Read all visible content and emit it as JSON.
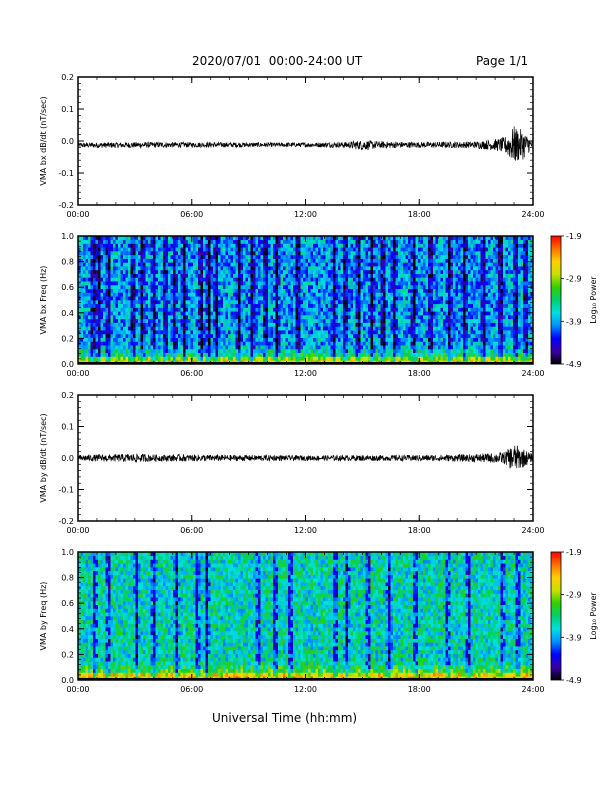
{
  "header": {
    "title": "2020/07/01  00:00-24:00 UT",
    "page": "Page 1/1"
  },
  "footer": {
    "xlabel": "Universal Time (hh:mm)"
  },
  "colorscale": {
    "stops": [
      "#000000",
      "#3a00a8",
      "#0000ff",
      "#0090ff",
      "#00e0e0",
      "#00d070",
      "#30d000",
      "#c8e000",
      "#ffd000",
      "#ff7000",
      "#ff0000"
    ]
  },
  "chart_data": [
    {
      "type": "line",
      "panel": "bx-wave",
      "ylabel": "VMA bx dB/dt (nT/sec)",
      "ylim": [
        -0.2,
        0.2
      ],
      "y_ticks": [
        -0.2,
        -0.1,
        0.0,
        0.1,
        0.2
      ],
      "y_tick_labels": [
        "-0.2",
        "-0.1",
        "0.0",
        "0.1",
        "0.2"
      ],
      "xlim": [
        "00:00",
        "24:00"
      ],
      "x_ticks": [
        "00:00",
        "06:00",
        "12:00",
        "18:00",
        "24:00"
      ],
      "series": [
        {
          "color": "#000000",
          "x_hours": [
            0,
            2,
            4,
            6,
            8,
            10,
            12,
            14,
            15,
            16,
            18,
            20,
            21,
            22,
            22.5,
            23,
            23.5,
            24
          ],
          "y_offset": [
            -0.013,
            -0.013,
            -0.012,
            -0.012,
            -0.012,
            -0.012,
            -0.012,
            -0.012,
            -0.013,
            -0.012,
            -0.012,
            -0.012,
            -0.012,
            -0.012,
            -0.013,
            -0.013,
            -0.012,
            -0.012
          ],
          "y_amplitude": [
            0.008,
            0.009,
            0.009,
            0.008,
            0.008,
            0.007,
            0.007,
            0.009,
            0.016,
            0.011,
            0.009,
            0.01,
            0.011,
            0.018,
            0.025,
            0.06,
            0.045,
            0.01
          ]
        }
      ]
    },
    {
      "type": "heatmap",
      "panel": "bx-spectrogram",
      "ylabel": "VMA bx Freq (Hz)",
      "ylim": [
        0.0,
        1.0
      ],
      "y_ticks": [
        0.0,
        0.2,
        0.4,
        0.6,
        0.8,
        1.0
      ],
      "y_tick_labels": [
        "0.0",
        "0.2",
        "0.4",
        "0.6",
        "0.8",
        "1.0"
      ],
      "xlim": [
        "00:00",
        "24:00"
      ],
      "x_ticks": [
        "00:00",
        "06:00",
        "12:00",
        "18:00",
        "24:00"
      ],
      "colorbar": {
        "label": "Log₁₀ Power",
        "range": [
          -4.9,
          -1.9
        ],
        "ticks": [
          -4.9,
          -3.9,
          -2.9,
          -1.9
        ],
        "tick_labels": [
          "-4.9",
          "-3.9",
          "-2.9",
          "-1.9"
        ]
      },
      "dark_stripe_hours": [
        0.8,
        1.1,
        1.6,
        2.9,
        3.4,
        4.0,
        4.6,
        5.1,
        5.6,
        6.5,
        6.9,
        7.3,
        8.5,
        9.2,
        9.9,
        10.5,
        11.6,
        13.5,
        14.1,
        14.8,
        15.5,
        16.1,
        16.7,
        17.7,
        18.6,
        19.6,
        20.4,
        21.4,
        22.3,
        23.1,
        23.6
      ],
      "low_freq_power": -2.9,
      "background_power": -3.9
    },
    {
      "type": "line",
      "panel": "by-wave",
      "ylabel": "VMA by dB/dt (nT/sec)",
      "ylim": [
        -0.2,
        0.2
      ],
      "y_ticks": [
        -0.2,
        -0.1,
        0.0,
        0.1,
        0.2
      ],
      "y_tick_labels": [
        "-0.2",
        "-0.1",
        "0.0",
        "0.1",
        "0.2"
      ],
      "xlim": [
        "00:00",
        "24:00"
      ],
      "x_ticks": [
        "00:00",
        "06:00",
        "12:00",
        "18:00",
        "24:00"
      ],
      "series": [
        {
          "color": "#000000",
          "x_hours": [
            0,
            2,
            3,
            4,
            6,
            8,
            10,
            12,
            14,
            16,
            18,
            20,
            21,
            22,
            22.5,
            23,
            23.5,
            24
          ],
          "y_offset": [
            0.0,
            0.0,
            0.0,
            0.0,
            0.0,
            0.0,
            0.0,
            0.0,
            0.0,
            0.0,
            0.0,
            0.0,
            0.0,
            0.0,
            0.0,
            0.0,
            0.0,
            0.0
          ],
          "y_amplitude": [
            0.01,
            0.012,
            0.014,
            0.011,
            0.011,
            0.01,
            0.009,
            0.008,
            0.009,
            0.009,
            0.01,
            0.011,
            0.013,
            0.016,
            0.02,
            0.045,
            0.03,
            0.01
          ]
        }
      ]
    },
    {
      "type": "heatmap",
      "panel": "by-spectrogram",
      "ylabel": "VMA by Freq (Hz)",
      "ylim": [
        0.0,
        1.0
      ],
      "y_ticks": [
        0.0,
        0.2,
        0.4,
        0.6,
        0.8,
        1.0
      ],
      "y_tick_labels": [
        "0.0",
        "0.2",
        "0.4",
        "0.6",
        "0.8",
        "1.0"
      ],
      "xlim": [
        "00:00",
        "24:00"
      ],
      "x_ticks": [
        "00:00",
        "06:00",
        "12:00",
        "18:00",
        "24:00"
      ],
      "colorbar": {
        "label": "Log₁₀ Power",
        "range": [
          -4.9,
          -1.9
        ],
        "ticks": [
          -4.9,
          -3.9,
          -2.9,
          -1.9
        ],
        "tick_labels": [
          "-4.9",
          "-3.9",
          "-2.9",
          "-1.9"
        ]
      },
      "dark_stripe_hours": [
        0.9,
        1.6,
        3.1,
        4.0,
        5.2,
        6.3,
        6.8,
        9.5,
        10.4,
        11.2,
        13.6,
        14.2,
        15.3,
        16.4,
        17.8,
        19.5,
        20.6,
        22.4,
        23.2
      ],
      "low_freq_power": -2.7,
      "background_power": -3.6
    }
  ]
}
